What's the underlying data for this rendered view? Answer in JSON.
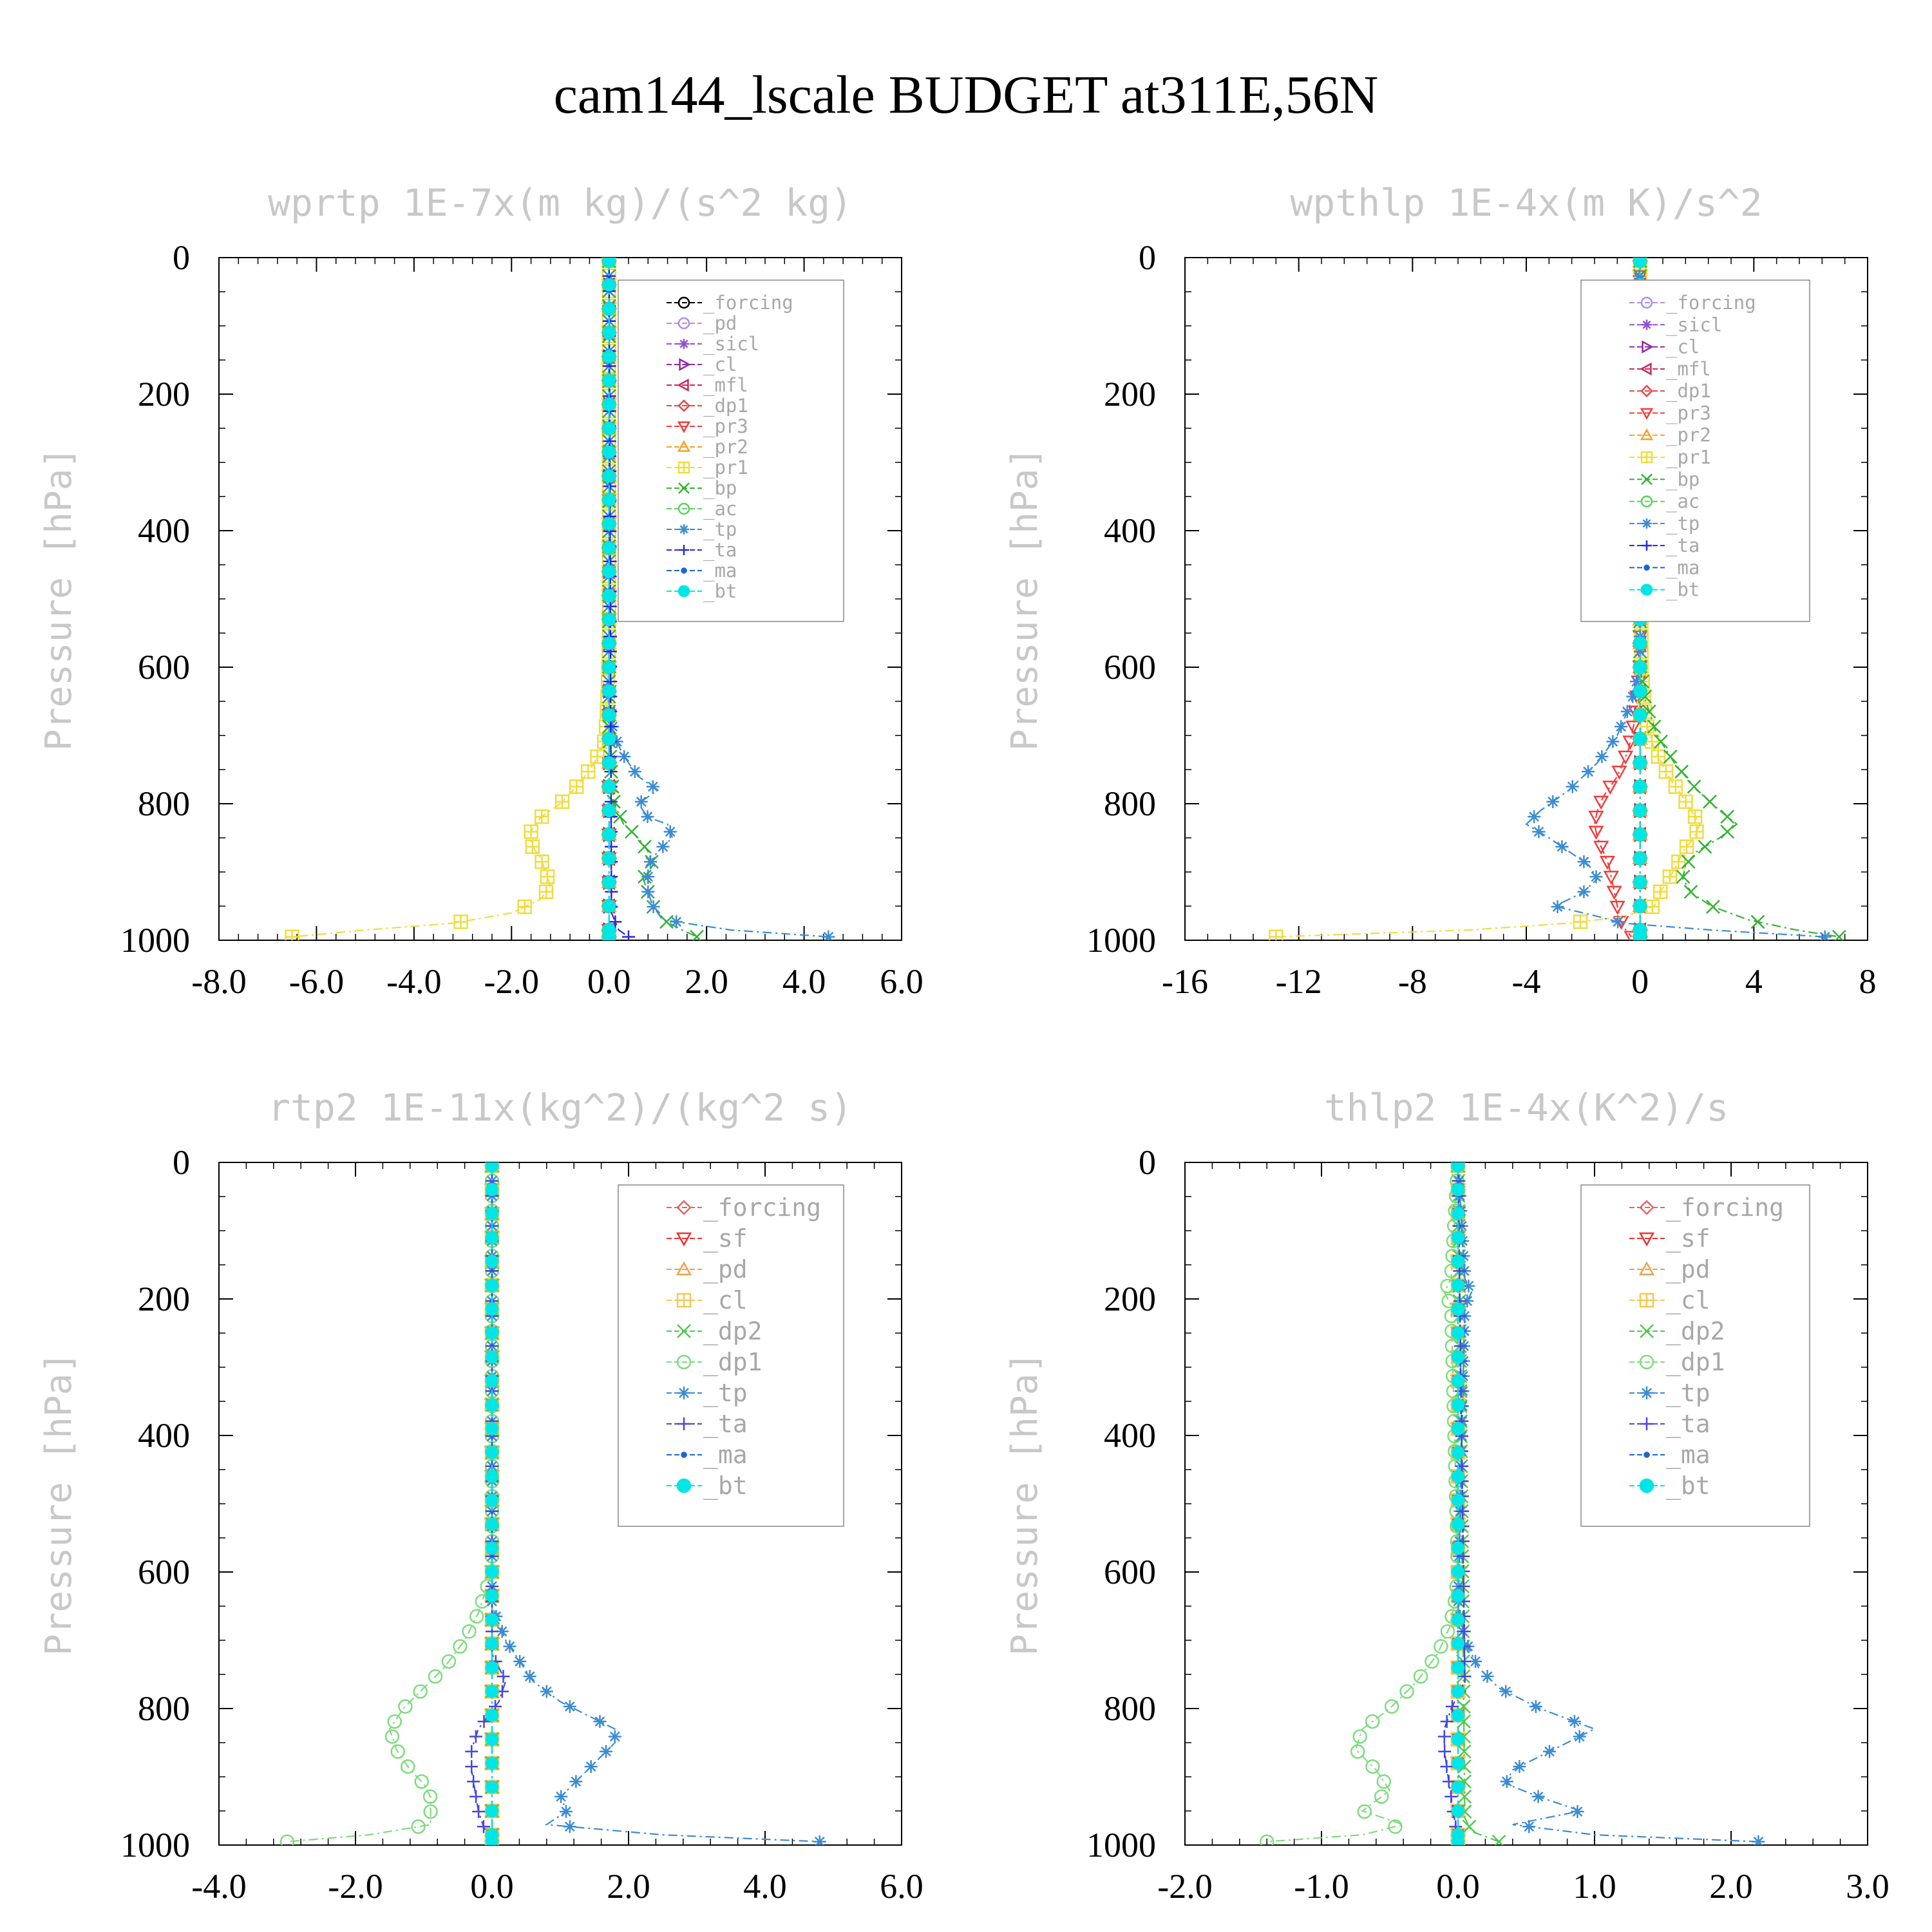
{
  "figure": {
    "title": "cam144_lscale  BUDGET at311E,56N"
  },
  "colors": {
    "forcing": "#000000",
    "pd": "#b48cf0",
    "sicl": "#9650d2",
    "cl_1": "#8c2aa0",
    "mfl": "#c8285a",
    "dp1_1": "#e64646",
    "pr3": "#f03c3c",
    "pr2": "#f5a028",
    "pr1": "#f0dc3c",
    "bp": "#32b432",
    "ac": "#5ad25a",
    "tp": "#3c8cd2",
    "ta": "#2828dc",
    "ma": "#1e64d2",
    "bt": "#00e6e6",
    "forcing_2": "#e66464",
    "sf": "#f03232",
    "pd_2": "#f0a050",
    "cl_2": "#f5c850",
    "dp2": "#50c850",
    "dp1_2": "#7ddc7d",
    "tp_2": "#3c8cd2",
    "ta_2": "#4646dc",
    "ma_2": "#1e64d2",
    "bt_2": "#00e6e6"
  },
  "chart_data": [
    {
      "type": "line",
      "title": "wprtp   1E-7x(m kg)/(s^2 kg)",
      "ylabel": "Pressure [hPa]",
      "xlabel": "",
      "xlim": [
        -8,
        6
      ],
      "ylim": [
        0,
        1000
      ],
      "xticks": [
        -8,
        -6,
        -4,
        -2,
        0,
        2,
        4,
        6
      ],
      "xtick_labels": [
        "-8.0",
        "-6.0",
        "-4.0",
        "-2.0",
        "0.0",
        "2.0",
        "4.0",
        "6.0"
      ],
      "yticks": [
        0,
        200,
        400,
        600,
        800,
        1000
      ],
      "ytick_labels": [
        "0",
        "200",
        "400",
        "600",
        "800",
        "1000"
      ],
      "legend": [
        "_forcing",
        "_pd",
        "_sicl",
        "_cl",
        "_mfl",
        "_dp1",
        "_pr3",
        "_pr2",
        "_pr1",
        "_bp",
        "_ac",
        "_tp",
        "_ta",
        "_ma",
        "_bt"
      ],
      "series": [
        {
          "name": "_forcing",
          "color_key": "forcing",
          "marker": "circle",
          "constant": 0
        },
        {
          "name": "_pd",
          "color_key": "pd",
          "marker": "circle",
          "constant": 0
        },
        {
          "name": "_sicl",
          "color_key": "sicl",
          "marker": "star",
          "constant": 0
        },
        {
          "name": "_cl",
          "color_key": "cl_1",
          "marker": "tri-right",
          "constant": 0
        },
        {
          "name": "_mfl",
          "color_key": "mfl",
          "marker": "tri-left",
          "constant": 0
        },
        {
          "name": "_dp1",
          "color_key": "dp1_1",
          "marker": "diamond",
          "constant": 0
        },
        {
          "name": "_pr3",
          "color_key": "pr3",
          "marker": "tri-down",
          "constant": 0
        },
        {
          "name": "_pr2",
          "color_key": "pr2",
          "marker": "tri-up",
          "constant": 0
        },
        {
          "name": "_pr1",
          "color_key": "pr1",
          "marker": "square-plus",
          "p": [
            0,
            560,
            620,
            680,
            710,
            740,
            770,
            800,
            820,
            840,
            860,
            880,
            900,
            920,
            940,
            960,
            975,
            985,
            995
          ],
          "x": [
            0,
            0,
            -0.02,
            -0.05,
            -0.1,
            -0.3,
            -0.6,
            -1.0,
            -1.4,
            -1.6,
            -1.6,
            -1.4,
            -1.3,
            -1.2,
            -1.4,
            -2.0,
            -3.2,
            -5.0,
            -6.5
          ]
        },
        {
          "name": "_bp",
          "color_key": "bp",
          "marker": "x",
          "p": [
            0,
            700,
            760,
            800,
            830,
            850,
            870,
            890,
            910,
            930,
            950,
            970,
            985,
            995
          ],
          "x": [
            0,
            0,
            0.05,
            0.1,
            0.3,
            0.6,
            0.8,
            0.9,
            0.7,
            0.8,
            0.9,
            1.1,
            1.5,
            1.8
          ]
        },
        {
          "name": "_ac",
          "color_key": "ac",
          "marker": "circle",
          "constant": 0
        },
        {
          "name": "_tp",
          "color_key": "tp",
          "marker": "asterisk",
          "p": [
            0,
            650,
            700,
            730,
            760,
            780,
            800,
            820,
            830,
            850,
            870,
            890,
            910,
            930,
            950,
            970,
            985,
            995
          ],
          "x": [
            0,
            0,
            0.1,
            0.3,
            0.6,
            1.0,
            0.6,
            0.8,
            1.2,
            1.3,
            1.0,
            0.8,
            0.8,
            0.8,
            0.9,
            1.1,
            2.5,
            4.5
          ]
        },
        {
          "name": "_ta",
          "color_key": "ta",
          "marker": "plus",
          "p": [
            0,
            960,
            985,
            995
          ],
          "x": [
            0,
            0.05,
            0.2,
            0.4
          ]
        },
        {
          "name": "_ma",
          "color_key": "ma",
          "marker": "dot",
          "constant": 0
        },
        {
          "name": "_bt",
          "color_key": "bt",
          "marker": "filled-circle",
          "constant": 0
        }
      ]
    },
    {
      "type": "line",
      "title": "wpthlp   1E-4x(m K)/s^2",
      "ylabel": "Pressure [hPa]",
      "xlabel": "",
      "xlim": [
        -16,
        8
      ],
      "ylim": [
        0,
        1000
      ],
      "xticks": [
        -16,
        -12,
        -8,
        -4,
        0,
        4,
        8
      ],
      "xtick_labels": [
        "-16",
        "-12",
        "-8",
        "-4",
        "0",
        "4",
        "8"
      ],
      "yticks": [
        0,
        200,
        400,
        600,
        800,
        1000
      ],
      "ytick_labels": [
        "0",
        "200",
        "400",
        "600",
        "800",
        "1000"
      ],
      "legend": [
        "_forcing",
        "_sicl",
        "_cl",
        "_mfl",
        "_dp1",
        "_pr3",
        "_pr2",
        "_pr1",
        "_bp",
        "_ac",
        "_tp",
        "_ta",
        "_ma",
        "_bt"
      ],
      "series": [
        {
          "name": "_forcing",
          "color_key": "pd",
          "marker": "circle",
          "constant": 0
        },
        {
          "name": "_sicl",
          "color_key": "sicl",
          "marker": "star",
          "constant": 0
        },
        {
          "name": "_cl",
          "color_key": "cl_1",
          "marker": "tri-right",
          "constant": 0
        },
        {
          "name": "_mfl",
          "color_key": "mfl",
          "marker": "tri-left",
          "constant": 0
        },
        {
          "name": "_dp1",
          "color_key": "dp1_1",
          "marker": "diamond",
          "constant": 0
        },
        {
          "name": "_pr3",
          "color_key": "pr3",
          "marker": "tri-down",
          "p": [
            0,
            600,
            680,
            720,
            760,
            790,
            810,
            830,
            850,
            870,
            890,
            910,
            930,
            950,
            970,
            985,
            995
          ],
          "x": [
            0,
            0,
            -0.2,
            -0.4,
            -0.8,
            -1.3,
            -1.5,
            -1.6,
            -1.5,
            -1.3,
            -1.1,
            -1.0,
            -0.9,
            -0.8,
            -0.7,
            -0.5,
            -0.3
          ]
        },
        {
          "name": "_pr2",
          "color_key": "pr2",
          "marker": "tri-up",
          "constant": 0
        },
        {
          "name": "_pr1",
          "color_key": "pr1",
          "marker": "square-plus",
          "p": [
            0,
            600,
            680,
            720,
            760,
            790,
            810,
            830,
            850,
            870,
            890,
            910,
            930,
            950,
            965,
            975,
            985,
            995
          ],
          "x": [
            0,
            0.05,
            0.2,
            0.5,
            1.0,
            1.5,
            1.8,
            2.1,
            1.9,
            1.5,
            1.3,
            1.0,
            0.7,
            0.5,
            -0.5,
            -2.5,
            -6.0,
            -12.8
          ]
        },
        {
          "name": "_bp",
          "color_key": "bp",
          "marker": "x",
          "p": [
            0,
            600,
            650,
            700,
            740,
            780,
            810,
            830,
            850,
            870,
            890,
            910,
            930,
            950,
            970,
            985,
            995
          ],
          "x": [
            0,
            0,
            0.2,
            0.6,
            1.2,
            2.0,
            2.8,
            3.4,
            2.8,
            2.0,
            1.6,
            1.5,
            1.8,
            2.5,
            3.8,
            5.5,
            7.0
          ]
        },
        {
          "name": "_ac",
          "color_key": "ac",
          "marker": "circle",
          "constant": 0
        },
        {
          "name": "_tp",
          "color_key": "tp",
          "marker": "asterisk",
          "p": [
            0,
            170,
            190,
            200,
            210,
            600,
            650,
            700,
            740,
            780,
            810,
            830,
            850,
            870,
            890,
            910,
            930,
            950,
            965,
            975,
            985,
            995
          ],
          "x": [
            0,
            -0.2,
            -0.6,
            -0.3,
            0,
            0,
            -0.3,
            -0.8,
            -1.5,
            -2.5,
            -3.5,
            -4.0,
            -3.2,
            -2.5,
            -1.8,
            -1.5,
            -2.0,
            -3.0,
            -1.5,
            -0.6,
            2.5,
            6.5
          ]
        },
        {
          "name": "_ta",
          "color_key": "ta",
          "marker": "plus",
          "constant": 0
        },
        {
          "name": "_ma",
          "color_key": "ma",
          "marker": "dot",
          "constant": 0
        },
        {
          "name": "_bt",
          "color_key": "bt",
          "marker": "filled-circle",
          "constant": 0
        }
      ]
    },
    {
      "type": "line",
      "title": "rtp2   1E-11x(kg^2)/(kg^2 s)",
      "ylabel": "Pressure [hPa]",
      "xlabel": "",
      "xlim": [
        -4,
        6
      ],
      "ylim": [
        0,
        1000
      ],
      "xticks": [
        -4,
        -2,
        0,
        2,
        4,
        6
      ],
      "xtick_labels": [
        "-4.0",
        "-2.0",
        "0.0",
        "2.0",
        "4.0",
        "6.0"
      ],
      "yticks": [
        0,
        200,
        400,
        600,
        800,
        1000
      ],
      "ytick_labels": [
        "0",
        "200",
        "400",
        "600",
        "800",
        "1000"
      ],
      "legend": [
        "_forcing",
        "_sf",
        "_pd",
        "_cl",
        "_dp2",
        "_dp1",
        "_tp",
        "_ta",
        "_ma",
        "_bt"
      ],
      "series": [
        {
          "name": "_forcing",
          "color_key": "forcing_2",
          "marker": "diamond",
          "constant": 0
        },
        {
          "name": "_sf",
          "color_key": "sf",
          "marker": "tri-down",
          "constant": 0
        },
        {
          "name": "_pd",
          "color_key": "pd_2",
          "marker": "tri-up",
          "constant": 0
        },
        {
          "name": "_cl",
          "color_key": "cl_2",
          "marker": "square-plus",
          "constant": 0
        },
        {
          "name": "_dp2",
          "color_key": "dp2",
          "marker": "x",
          "constant": 0
        },
        {
          "name": "_dp1",
          "color_key": "dp1_2",
          "marker": "circle",
          "p": [
            0,
            600,
            630,
            660,
            700,
            740,
            770,
            800,
            830,
            860,
            890,
            910,
            930,
            950,
            970,
            985,
            995
          ],
          "x": [
            0,
            0,
            -0.1,
            -0.2,
            -0.4,
            -0.7,
            -1.0,
            -1.3,
            -1.5,
            -1.4,
            -1.2,
            -1.0,
            -0.9,
            -0.9,
            -0.9,
            -1.8,
            -3.0
          ]
        },
        {
          "name": "_tp",
          "color_key": "tp_2",
          "marker": "asterisk",
          "p": [
            0,
            650,
            700,
            730,
            760,
            790,
            810,
            830,
            850,
            870,
            890,
            910,
            930,
            950,
            970,
            985,
            995
          ],
          "x": [
            0,
            0,
            0.2,
            0.4,
            0.6,
            1.0,
            1.4,
            1.8,
            1.8,
            1.6,
            1.4,
            1.2,
            1.0,
            1.1,
            0.8,
            2.5,
            4.8
          ]
        },
        {
          "name": "_ta",
          "color_key": "ta_2",
          "marker": "plus",
          "p": [
            0,
            720,
            760,
            790,
            830,
            860,
            890,
            920,
            950,
            980,
            995
          ],
          "x": [
            0,
            0,
            0.2,
            0.1,
            -0.2,
            -0.3,
            -0.3,
            -0.25,
            -0.2,
            -0.1,
            0
          ]
        },
        {
          "name": "_ma",
          "color_key": "ma_2",
          "marker": "dot",
          "constant": 0
        },
        {
          "name": "_bt",
          "color_key": "bt_2",
          "marker": "filled-circle",
          "constant": 0
        }
      ]
    },
    {
      "type": "line",
      "title": "thlp2   1E-4x(K^2)/s",
      "ylabel": "Pressure [hPa]",
      "xlabel": "",
      "xlim": [
        -2,
        3
      ],
      "ylim": [
        0,
        1000
      ],
      "xticks": [
        -2,
        -1,
        0,
        1,
        2,
        3
      ],
      "xtick_labels": [
        "-2.0",
        "-1.0",
        "0.0",
        "1.0",
        "2.0",
        "3.0"
      ],
      "yticks": [
        0,
        200,
        400,
        600,
        800,
        1000
      ],
      "ytick_labels": [
        "0",
        "200",
        "400",
        "600",
        "800",
        "1000"
      ],
      "legend": [
        "_forcing",
        "_sf",
        "_pd",
        "_cl",
        "_dp2",
        "_dp1",
        "_tp",
        "_ta",
        "_ma",
        "_bt"
      ],
      "series": [
        {
          "name": "_forcing",
          "color_key": "forcing_2",
          "marker": "diamond",
          "constant": 0
        },
        {
          "name": "_sf",
          "color_key": "sf",
          "marker": "tri-down",
          "constant": 0
        },
        {
          "name": "_pd",
          "color_key": "pd_2",
          "marker": "tri-up",
          "constant": 0
        },
        {
          "name": "_cl",
          "color_key": "cl_2",
          "marker": "square-plus",
          "constant": 0
        },
        {
          "name": "_dp2",
          "color_key": "dp2",
          "marker": "x",
          "p": [
            0,
            960,
            980,
            995
          ],
          "x": [
            0,
            0.05,
            0.1,
            0.3
          ]
        },
        {
          "name": "_dp1",
          "color_key": "dp1_2",
          "marker": "circle",
          "p": [
            0,
            170,
            190,
            210,
            600,
            640,
            680,
            720,
            760,
            800,
            830,
            860,
            890,
            920,
            950,
            970,
            985,
            995
          ],
          "x": [
            0,
            -0.05,
            -0.1,
            -0.05,
            0,
            -0.02,
            -0.06,
            -0.15,
            -0.3,
            -0.5,
            -0.7,
            -0.75,
            -0.6,
            -0.5,
            -0.7,
            -0.4,
            -0.7,
            -1.4
          ]
        },
        {
          "name": "_tp",
          "color_key": "tp_2",
          "marker": "asterisk",
          "p": [
            0,
            170,
            190,
            210,
            650,
            700,
            740,
            770,
            800,
            830,
            860,
            890,
            910,
            930,
            950,
            970,
            985,
            995
          ],
          "x": [
            0,
            0.05,
            0.1,
            0.05,
            0,
            0.05,
            0.15,
            0.3,
            0.6,
            1.0,
            0.7,
            0.4,
            0.35,
            0.6,
            0.9,
            0.4,
            1.0,
            2.2
          ]
        },
        {
          "name": "_ta",
          "color_key": "ta_2",
          "marker": "plus",
          "p": [
            0,
            760,
            800,
            830,
            860,
            890,
            930,
            970,
            995
          ],
          "x": [
            0,
            0.05,
            -0.05,
            -0.1,
            -0.1,
            -0.08,
            -0.05,
            -0.02,
            0
          ]
        },
        {
          "name": "_ma",
          "color_key": "ma_2",
          "marker": "dot",
          "constant": 0
        },
        {
          "name": "_bt",
          "color_key": "bt_2",
          "marker": "filled-circle",
          "constant": 0
        }
      ]
    }
  ]
}
